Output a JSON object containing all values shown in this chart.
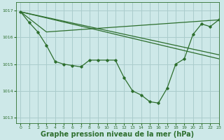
{
  "background_color": "#cde8e8",
  "grid_color": "#aacccc",
  "line_color": "#2d6e2d",
  "xlabel": "Graphe pression niveau de la mer (hPa)",
  "xlabel_fontsize": 7,
  "ylim": [
    1012.8,
    1017.3
  ],
  "xlim": [
    -0.5,
    23
  ],
  "yticks": [
    1013,
    1014,
    1015,
    1016,
    1017
  ],
  "xticks": [
    0,
    1,
    2,
    3,
    4,
    5,
    6,
    7,
    8,
    9,
    10,
    11,
    12,
    13,
    14,
    15,
    16,
    17,
    18,
    19,
    20,
    21,
    22,
    23
  ],
  "series_hourly": {
    "x": [
      0,
      1,
      2,
      3,
      4,
      5,
      6,
      7,
      8,
      9,
      10,
      11,
      12,
      13,
      14,
      15,
      16,
      17,
      18,
      19,
      20,
      21,
      22,
      23
    ],
    "y": [
      1016.95,
      1016.55,
      1016.2,
      1015.7,
      1015.1,
      1015.0,
      1014.95,
      1014.9,
      1015.15,
      1015.15,
      1015.15,
      1015.15,
      1014.5,
      1014.0,
      1013.85,
      1013.6,
      1013.55,
      1014.1,
      1015.0,
      1015.2,
      1016.1,
      1016.5,
      1016.4,
      1016.65
    ]
  },
  "series_smooth": [
    {
      "x": [
        0,
        23
      ],
      "y": [
        1016.95,
        1015.2
      ]
    },
    {
      "x": [
        0,
        23
      ],
      "y": [
        1016.95,
        1015.35
      ]
    },
    {
      "x": [
        0,
        3,
        23
      ],
      "y": [
        1016.95,
        1016.2,
        1016.65
      ]
    }
  ]
}
